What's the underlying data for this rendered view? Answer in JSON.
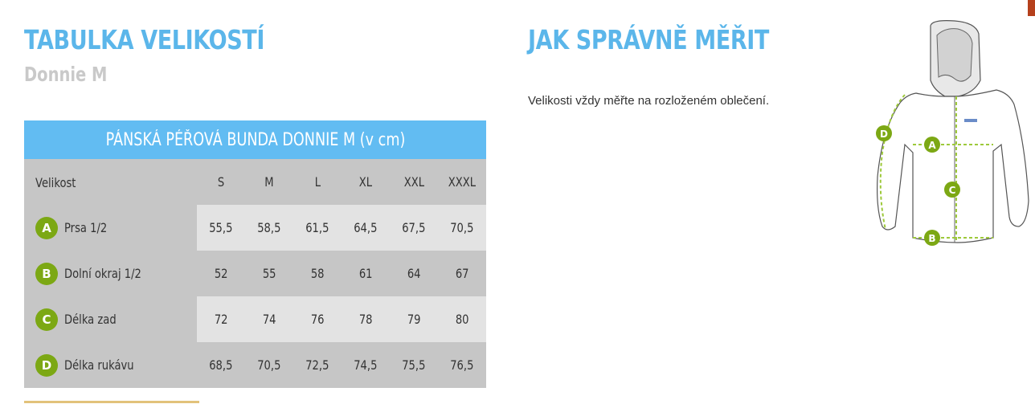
{
  "header": {
    "title": "TABULKA VELIKOSTÍ",
    "product": "Donnie M"
  },
  "howto": {
    "title": "JAK SPRÁVNĚ MĚŘIT",
    "note": "Velikosti vždy měřte na rozloženém oblečení."
  },
  "table": {
    "caption": "PÁNSKÁ PÉŘOVÁ BUNDA DONNIE M (v cm)",
    "size_label": "Velikost",
    "sizes": [
      "S",
      "M",
      "L",
      "XL",
      "XXL",
      "XXXL"
    ],
    "rows": [
      {
        "badge": "A",
        "label": "Prsa 1/2",
        "values": [
          "55,5",
          "58,5",
          "61,5",
          "64,5",
          "67,5",
          "70,5"
        ]
      },
      {
        "badge": "B",
        "label": "Dolní okraj 1/2",
        "values": [
          "52",
          "55",
          "58",
          "61",
          "64",
          "67"
        ]
      },
      {
        "badge": "C",
        "label": "Délka zad",
        "values": [
          "72",
          "74",
          "76",
          "78",
          "79",
          "80"
        ]
      },
      {
        "badge": "D",
        "label": "Délka rukávu",
        "values": [
          "68,5",
          "70,5",
          "72,5",
          "74,5",
          "75,5",
          "76,5"
        ]
      }
    ]
  },
  "diagram": {
    "markers": [
      "A",
      "B",
      "C",
      "D"
    ],
    "badge_color": "#7ca814",
    "line_color": "#9dc93a"
  },
  "colors": {
    "accent": "#5bb6ea",
    "header_bar": "#62bcf2",
    "row_dark": "#c6c6c6",
    "row_light": "#e3e3e3"
  }
}
